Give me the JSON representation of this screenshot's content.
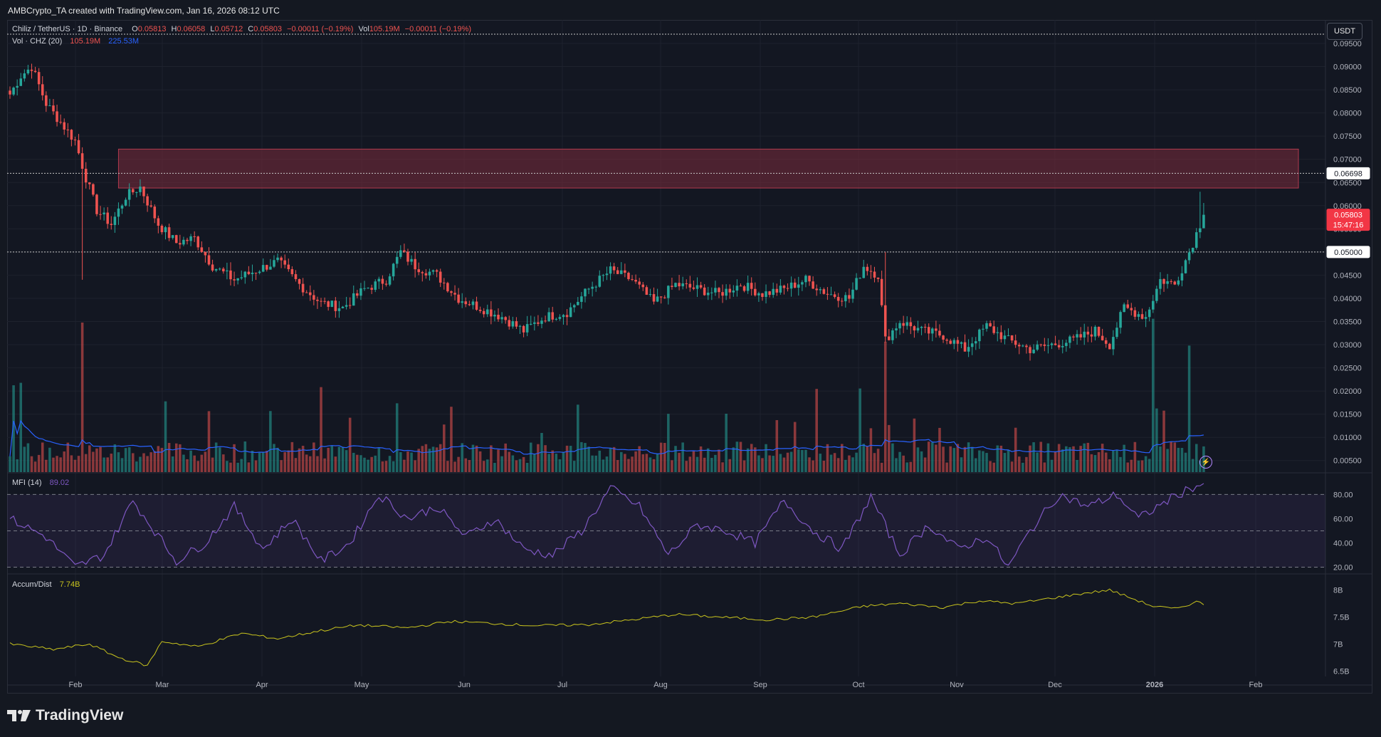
{
  "header": {
    "created_by": "AMBCrypto_TA created with TradingView.com, Jan 16, 2026 08:12 UTC"
  },
  "legend": {
    "symbol": "Chiliz / TetherUS · 1D · Binance",
    "open_label": "O",
    "open": "0.05813",
    "high_label": "H",
    "high": "0.06058",
    "low_label": "L",
    "low": "0.05712",
    "close_label": "C",
    "close": "0.05803",
    "change": "−0.00011 (−0.19%)",
    "vol_label": "Vol",
    "vol": "105.19M",
    "vol_change": "−0.00011 (−0.19%)",
    "vol_indicator": "Vol · CHZ (20)",
    "vol_value": "105.19M",
    "vol_ma": "225.53M"
  },
  "mfi": {
    "label": "MFI (14)",
    "value": "89.02"
  },
  "ad": {
    "label": "Accum/Dist",
    "value": "7.74B"
  },
  "currency_button": "USDT",
  "price_badges": {
    "resistance": "0.06698",
    "support": "0.05000",
    "last": "0.05803",
    "countdown": "15:47:16"
  },
  "brand": "TradingView",
  "colors": {
    "up": "#26a69a",
    "down": "#ef5350",
    "zone": "#7b2c3d",
    "mfi": "#7e57c2",
    "ad": "#c9c41d",
    "volma": "#2962ff"
  },
  "chart_data": {
    "type": "candlestick",
    "title": "Chiliz / TetherUS · 1D · Binance",
    "x_tick_labels": [
      "Feb",
      "Mar",
      "Apr",
      "May",
      "Jun",
      "Jul",
      "Aug",
      "Sep",
      "Oct",
      "Nov",
      "Dec",
      "2026",
      "Feb"
    ],
    "y_tick_labels": [
      "0.09500",
      "0.09000",
      "0.08500",
      "0.08000",
      "0.07500",
      "0.07000",
      "0.06500",
      "0.06000",
      "0.05500",
      "0.05000",
      "0.04500",
      "0.04000",
      "0.03500",
      "0.03000",
      "0.02500",
      "0.02000",
      "0.01500",
      "0.01000",
      "0.00500"
    ],
    "ylim": [
      0.0025,
      0.097
    ],
    "key_prices": [
      {
        "t": 0,
        "p": 0.084
      },
      {
        "t": 3,
        "p": 0.088
      },
      {
        "t": 6,
        "p": 0.09
      },
      {
        "t": 10,
        "p": 0.082
      },
      {
        "t": 14,
        "p": 0.078
      },
      {
        "t": 18,
        "p": 0.074
      },
      {
        "t": 21,
        "p": 0.066
      },
      {
        "t": 24,
        "p": 0.059
      },
      {
        "t": 28,
        "p": 0.056
      },
      {
        "t": 32,
        "p": 0.062
      },
      {
        "t": 36,
        "p": 0.064
      },
      {
        "t": 41,
        "p": 0.056
      },
      {
        "t": 46,
        "p": 0.052
      },
      {
        "t": 51,
        "p": 0.053
      },
      {
        "t": 56,
        "p": 0.047
      },
      {
        "t": 62,
        "p": 0.044
      },
      {
        "t": 68,
        "p": 0.046
      },
      {
        "t": 74,
        "p": 0.048
      },
      {
        "t": 80,
        "p": 0.043
      },
      {
        "t": 86,
        "p": 0.039
      },
      {
        "t": 92,
        "p": 0.038
      },
      {
        "t": 98,
        "p": 0.042
      },
      {
        "t": 104,
        "p": 0.044
      },
      {
        "t": 108,
        "p": 0.05
      },
      {
        "t": 112,
        "p": 0.047
      },
      {
        "t": 118,
        "p": 0.045
      },
      {
        "t": 124,
        "p": 0.04
      },
      {
        "t": 130,
        "p": 0.038
      },
      {
        "t": 136,
        "p": 0.036
      },
      {
        "t": 142,
        "p": 0.033
      },
      {
        "t": 148,
        "p": 0.036
      },
      {
        "t": 154,
        "p": 0.037
      },
      {
        "t": 160,
        "p": 0.042
      },
      {
        "t": 166,
        "p": 0.046
      },
      {
        "t": 172,
        "p": 0.044
      },
      {
        "t": 178,
        "p": 0.039
      },
      {
        "t": 184,
        "p": 0.043
      },
      {
        "t": 190,
        "p": 0.042
      },
      {
        "t": 196,
        "p": 0.041
      },
      {
        "t": 202,
        "p": 0.043
      },
      {
        "t": 208,
        "p": 0.041
      },
      {
        "t": 214,
        "p": 0.042
      },
      {
        "t": 220,
        "p": 0.044
      },
      {
        "t": 226,
        "p": 0.041
      },
      {
        "t": 232,
        "p": 0.04
      },
      {
        "t": 236,
        "p": 0.047
      },
      {
        "t": 240,
        "p": 0.045
      },
      {
        "t": 242,
        "p": 0.031
      },
      {
        "t": 246,
        "p": 0.035
      },
      {
        "t": 252,
        "p": 0.033
      },
      {
        "t": 258,
        "p": 0.032
      },
      {
        "t": 264,
        "p": 0.029
      },
      {
        "t": 270,
        "p": 0.034
      },
      {
        "t": 276,
        "p": 0.031
      },
      {
        "t": 282,
        "p": 0.029
      },
      {
        "t": 288,
        "p": 0.03
      },
      {
        "t": 294,
        "p": 0.031
      },
      {
        "t": 300,
        "p": 0.033
      },
      {
        "t": 304,
        "p": 0.03
      },
      {
        "t": 308,
        "p": 0.038
      },
      {
        "t": 314,
        "p": 0.036
      },
      {
        "t": 318,
        "p": 0.044
      },
      {
        "t": 322,
        "p": 0.043
      },
      {
        "t": 326,
        "p": 0.05
      },
      {
        "t": 330,
        "p": 0.058
      }
    ],
    "resistance_zone": [
      0.0638,
      0.0722
    ],
    "levels": [
      0.06698,
      0.05
    ],
    "last": {
      "open": 0.05813,
      "high": 0.06058,
      "low": 0.05712,
      "close": 0.05803
    },
    "volume_ylim": [
      0,
      260
    ],
    "mfi_levels": [
      80,
      50,
      20
    ],
    "mfi_tick_labels": [
      "80.00",
      "60.00",
      "40.00",
      "20.00"
    ],
    "mfi_ylim": [
      15,
      92
    ],
    "mfi_key": [
      {
        "t": 0,
        "v": 60
      },
      {
        "t": 10,
        "v": 45
      },
      {
        "t": 18,
        "v": 20
      },
      {
        "t": 26,
        "v": 30
      },
      {
        "t": 34,
        "v": 75
      },
      {
        "t": 40,
        "v": 50
      },
      {
        "t": 46,
        "v": 25
      },
      {
        "t": 54,
        "v": 40
      },
      {
        "t": 62,
        "v": 70
      },
      {
        "t": 70,
        "v": 35
      },
      {
        "t": 78,
        "v": 60
      },
      {
        "t": 86,
        "v": 25
      },
      {
        "t": 94,
        "v": 40
      },
      {
        "t": 102,
        "v": 80
      },
      {
        "t": 110,
        "v": 60
      },
      {
        "t": 118,
        "v": 70
      },
      {
        "t": 126,
        "v": 45
      },
      {
        "t": 134,
        "v": 60
      },
      {
        "t": 142,
        "v": 35
      },
      {
        "t": 150,
        "v": 30
      },
      {
        "t": 158,
        "v": 50
      },
      {
        "t": 166,
        "v": 85
      },
      {
        "t": 174,
        "v": 70
      },
      {
        "t": 182,
        "v": 30
      },
      {
        "t": 190,
        "v": 55
      },
      {
        "t": 198,
        "v": 50
      },
      {
        "t": 206,
        "v": 40
      },
      {
        "t": 214,
        "v": 75
      },
      {
        "t": 222,
        "v": 50
      },
      {
        "t": 230,
        "v": 35
      },
      {
        "t": 238,
        "v": 78
      },
      {
        "t": 246,
        "v": 30
      },
      {
        "t": 254,
        "v": 55
      },
      {
        "t": 262,
        "v": 35
      },
      {
        "t": 270,
        "v": 45
      },
      {
        "t": 276,
        "v": 20
      },
      {
        "t": 282,
        "v": 50
      },
      {
        "t": 290,
        "v": 80
      },
      {
        "t": 298,
        "v": 70
      },
      {
        "t": 306,
        "v": 80
      },
      {
        "t": 312,
        "v": 60
      },
      {
        "t": 320,
        "v": 75
      },
      {
        "t": 326,
        "v": 85
      },
      {
        "t": 330,
        "v": 89
      }
    ],
    "ad_tick_labels": [
      "8B",
      "7.5B",
      "7B",
      "6.5B"
    ],
    "ad_ylim": [
      6.4,
      8.1
    ],
    "ad_key": [
      {
        "t": 0,
        "v": 7.0
      },
      {
        "t": 12,
        "v": 6.9
      },
      {
        "t": 22,
        "v": 7.0
      },
      {
        "t": 30,
        "v": 6.75
      },
      {
        "t": 38,
        "v": 6.6
      },
      {
        "t": 42,
        "v": 7.05
      },
      {
        "t": 52,
        "v": 6.95
      },
      {
        "t": 64,
        "v": 7.2
      },
      {
        "t": 74,
        "v": 7.1
      },
      {
        "t": 86,
        "v": 7.25
      },
      {
        "t": 96,
        "v": 7.35
      },
      {
        "t": 110,
        "v": 7.3
      },
      {
        "t": 122,
        "v": 7.42
      },
      {
        "t": 134,
        "v": 7.38
      },
      {
        "t": 146,
        "v": 7.34
      },
      {
        "t": 160,
        "v": 7.36
      },
      {
        "t": 172,
        "v": 7.45
      },
      {
        "t": 184,
        "v": 7.55
      },
      {
        "t": 196,
        "v": 7.5
      },
      {
        "t": 210,
        "v": 7.45
      },
      {
        "t": 222,
        "v": 7.5
      },
      {
        "t": 236,
        "v": 7.7
      },
      {
        "t": 246,
        "v": 7.75
      },
      {
        "t": 258,
        "v": 7.68
      },
      {
        "t": 268,
        "v": 7.8
      },
      {
        "t": 278,
        "v": 7.75
      },
      {
        "t": 288,
        "v": 7.85
      },
      {
        "t": 298,
        "v": 7.95
      },
      {
        "t": 304,
        "v": 8.0
      },
      {
        "t": 310,
        "v": 7.85
      },
      {
        "t": 316,
        "v": 7.7
      },
      {
        "t": 322,
        "v": 7.65
      },
      {
        "t": 328,
        "v": 7.78
      },
      {
        "t": 330,
        "v": 7.74
      }
    ],
    "total_bars": 331
  }
}
